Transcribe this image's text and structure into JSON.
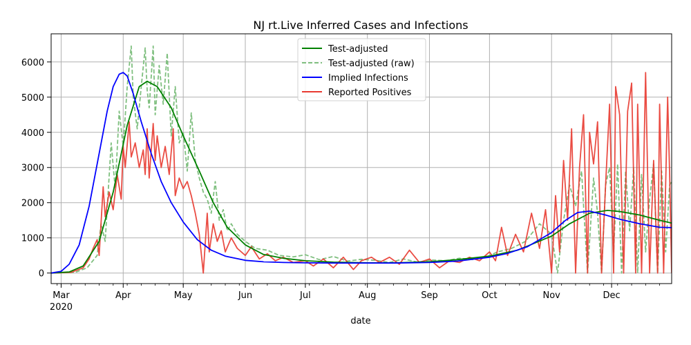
{
  "chart_data": {
    "type": "line",
    "title": "NJ rt.Live Inferred Cases and Infections",
    "xlabel": "date",
    "ylabel": "",
    "x_range": [
      "2020-02-25",
      "2020-12-31"
    ],
    "ylim": [
      -300,
      6800
    ],
    "grid": true,
    "legend_position": "top-center",
    "x_ticks": [
      {
        "date": "2020-03-01",
        "label": "Mar",
        "sublabel": "2020"
      },
      {
        "date": "2020-04-01",
        "label": "Apr"
      },
      {
        "date": "2020-05-01",
        "label": "May"
      },
      {
        "date": "2020-06-01",
        "label": "Jun"
      },
      {
        "date": "2020-07-01",
        "label": "Jul"
      },
      {
        "date": "2020-08-01",
        "label": "Aug"
      },
      {
        "date": "2020-09-01",
        "label": "Sep"
      },
      {
        "date": "2020-10-01",
        "label": "Oct"
      },
      {
        "date": "2020-11-01",
        "label": "Nov"
      },
      {
        "date": "2020-12-01",
        "label": "Dec"
      }
    ],
    "y_ticks": [
      0,
      1000,
      2000,
      3000,
      4000,
      5000,
      6000
    ],
    "series": [
      {
        "name": "Test-adjusted",
        "color": "#008000",
        "style": "solid",
        "x": [
          "2020-02-25",
          "2020-03-05",
          "2020-03-12",
          "2020-03-20",
          "2020-03-27",
          "2020-04-03",
          "2020-04-09",
          "2020-04-13",
          "2020-04-18",
          "2020-04-25",
          "2020-05-01",
          "2020-05-09",
          "2020-05-16",
          "2020-05-23",
          "2020-06-01",
          "2020-06-10",
          "2020-06-20",
          "2020-07-01",
          "2020-07-15",
          "2020-08-01",
          "2020-08-15",
          "2020-09-01",
          "2020-09-15",
          "2020-10-01",
          "2020-10-15",
          "2020-11-01",
          "2020-11-10",
          "2020-11-20",
          "2020-11-29",
          "2020-12-05",
          "2020-12-15",
          "2020-12-25",
          "2020-12-31"
        ],
        "y": [
          0,
          30,
          200,
          900,
          2300,
          4200,
          5300,
          5450,
          5300,
          4700,
          3900,
          2900,
          2000,
          1300,
          800,
          530,
          420,
          350,
          310,
          290,
          290,
          320,
          380,
          480,
          650,
          1050,
          1400,
          1700,
          1780,
          1750,
          1650,
          1500,
          1420
        ]
      },
      {
        "name": "Test-adjusted (raw)",
        "color": "#7fbf7f",
        "style": "dashed",
        "x": [
          "2020-02-25",
          "2020-03-08",
          "2020-03-14",
          "2020-03-19",
          "2020-03-21",
          "2020-03-23",
          "2020-03-26",
          "2020-03-28",
          "2020-03-30",
          "2020-04-01",
          "2020-04-03",
          "2020-04-05",
          "2020-04-06",
          "2020-04-08",
          "2020-04-10",
          "2020-04-12",
          "2020-04-13",
          "2020-04-14",
          "2020-04-16",
          "2020-04-17",
          "2020-04-19",
          "2020-04-21",
          "2020-04-23",
          "2020-04-25",
          "2020-04-27",
          "2020-04-29",
          "2020-05-01",
          "2020-05-03",
          "2020-05-05",
          "2020-05-07",
          "2020-05-09",
          "2020-05-11",
          "2020-05-13",
          "2020-05-15",
          "2020-05-17",
          "2020-05-19",
          "2020-05-21",
          "2020-05-23",
          "2020-05-25",
          "2020-05-28",
          "2020-06-01",
          "2020-06-06",
          "2020-06-12",
          "2020-06-18",
          "2020-06-25",
          "2020-07-01",
          "2020-07-08",
          "2020-07-15",
          "2020-07-22",
          "2020-07-29",
          "2020-08-05",
          "2020-08-12",
          "2020-08-19",
          "2020-08-26",
          "2020-09-02",
          "2020-09-09",
          "2020-09-16",
          "2020-09-23",
          "2020-09-30",
          "2020-10-05",
          "2020-10-12",
          "2020-10-19",
          "2020-10-26",
          "2020-11-01",
          "2020-11-04",
          "2020-11-07",
          "2020-11-10",
          "2020-11-13",
          "2020-11-16",
          "2020-11-19",
          "2020-11-22",
          "2020-11-24",
          "2020-11-26",
          "2020-11-28",
          "2020-11-30",
          "2020-12-02",
          "2020-12-04",
          "2020-12-06",
          "2020-12-08",
          "2020-12-10",
          "2020-12-12",
          "2020-12-14",
          "2020-12-16",
          "2020-12-18",
          "2020-12-20",
          "2020-12-22",
          "2020-12-24",
          "2020-12-26",
          "2020-12-28",
          "2020-12-30",
          "2020-12-31"
        ],
        "y": [
          0,
          20,
          150,
          500,
          1400,
          900,
          3700,
          2400,
          4600,
          3600,
          5300,
          6450,
          5000,
          4100,
          5300,
          6400,
          5200,
          4700,
          6450,
          4500,
          5900,
          4800,
          6250,
          3900,
          5300,
          3700,
          4000,
          2900,
          4550,
          3200,
          2700,
          2300,
          2100,
          1700,
          2600,
          1500,
          1800,
          1200,
          1400,
          1100,
          900,
          700,
          650,
          500,
          460,
          520,
          380,
          470,
          340,
          390,
          360,
          300,
          400,
          310,
          370,
          350,
          420,
          380,
          470,
          600,
          700,
          900,
          1400,
          1100,
          0,
          1500,
          2500,
          1900,
          2900,
          0,
          2700,
          1700,
          0,
          2500,
          3000,
          600,
          3100,
          0,
          2900,
          1200,
          3000,
          0,
          2800,
          600,
          2100,
          3100,
          0,
          2900,
          600,
          2500,
          2600
        ]
      },
      {
        "name": "Implied Infections",
        "color": "#0000ff",
        "style": "solid",
        "x": [
          "2020-02-25",
          "2020-03-01",
          "2020-03-05",
          "2020-03-10",
          "2020-03-15",
          "2020-03-20",
          "2020-03-24",
          "2020-03-27",
          "2020-03-30",
          "2020-04-01",
          "2020-04-03",
          "2020-04-06",
          "2020-04-10",
          "2020-04-15",
          "2020-04-20",
          "2020-04-25",
          "2020-05-01",
          "2020-05-08",
          "2020-05-15",
          "2020-05-22",
          "2020-06-01",
          "2020-06-10",
          "2020-06-20",
          "2020-07-01",
          "2020-07-15",
          "2020-08-01",
          "2020-08-15",
          "2020-09-01",
          "2020-09-15",
          "2020-10-01",
          "2020-10-10",
          "2020-10-20",
          "2020-11-01",
          "2020-11-08",
          "2020-11-14",
          "2020-11-20",
          "2020-11-28",
          "2020-12-05",
          "2020-12-15",
          "2020-12-25",
          "2020-12-31"
        ],
        "y": [
          0,
          50,
          250,
          800,
          1900,
          3400,
          4600,
          5300,
          5650,
          5700,
          5600,
          5100,
          4300,
          3400,
          2600,
          2000,
          1450,
          950,
          650,
          480,
          360,
          320,
          300,
          290,
          285,
          285,
          285,
          300,
          340,
          450,
          560,
          750,
          1150,
          1500,
          1720,
          1760,
          1650,
          1530,
          1400,
          1300,
          1290
        ]
      },
      {
        "name": "Reported Positives",
        "color": "#e8382f",
        "style": "solid",
        "x": [
          "2020-02-25",
          "2020-03-06",
          "2020-03-12",
          "2020-03-15",
          "2020-03-17",
          "2020-03-19",
          "2020-03-20",
          "2020-03-22",
          "2020-03-23",
          "2020-03-25",
          "2020-03-27",
          "2020-03-29",
          "2020-03-31",
          "2020-04-01",
          "2020-04-02",
          "2020-04-04",
          "2020-04-05",
          "2020-04-07",
          "2020-04-09",
          "2020-04-11",
          "2020-04-12",
          "2020-04-13",
          "2020-04-14",
          "2020-04-16",
          "2020-04-17",
          "2020-04-18",
          "2020-04-20",
          "2020-04-22",
          "2020-04-24",
          "2020-04-26",
          "2020-04-27",
          "2020-04-29",
          "2020-05-01",
          "2020-05-03",
          "2020-05-05",
          "2020-05-07",
          "2020-05-09",
          "2020-05-11",
          "2020-05-13",
          "2020-05-14",
          "2020-05-16",
          "2020-05-18",
          "2020-05-20",
          "2020-05-22",
          "2020-05-25",
          "2020-05-28",
          "2020-06-01",
          "2020-06-04",
          "2020-06-08",
          "2020-06-12",
          "2020-06-16",
          "2020-06-20",
          "2020-06-25",
          "2020-07-01",
          "2020-07-05",
          "2020-07-10",
          "2020-07-15",
          "2020-07-20",
          "2020-07-25",
          "2020-07-29",
          "2020-08-03",
          "2020-08-07",
          "2020-08-12",
          "2020-08-17",
          "2020-08-22",
          "2020-08-27",
          "2020-09-01",
          "2020-09-06",
          "2020-09-11",
          "2020-09-16",
          "2020-09-21",
          "2020-09-26",
          "2020-10-01",
          "2020-10-04",
          "2020-10-07",
          "2020-10-10",
          "2020-10-14",
          "2020-10-18",
          "2020-10-22",
          "2020-10-26",
          "2020-10-29",
          "2020-11-01",
          "2020-11-03",
          "2020-11-05",
          "2020-11-07",
          "2020-11-09",
          "2020-11-11",
          "2020-11-13",
          "2020-11-15",
          "2020-11-17",
          "2020-11-19",
          "2020-11-20",
          "2020-11-22",
          "2020-11-24",
          "2020-11-26",
          "2020-11-28",
          "2020-11-30",
          "2020-12-02",
          "2020-12-03",
          "2020-12-05",
          "2020-12-07",
          "2020-12-09",
          "2020-12-11",
          "2020-12-13",
          "2020-12-14",
          "2020-12-16",
          "2020-12-18",
          "2020-12-20",
          "2020-12-22",
          "2020-12-24",
          "2020-12-25",
          "2020-12-27",
          "2020-12-29",
          "2020-12-30",
          "2020-12-31"
        ],
        "y": [
          0,
          20,
          150,
          400,
          700,
          950,
          500,
          2450,
          1600,
          2300,
          1800,
          2800,
          2100,
          3600,
          3000,
          4300,
          3300,
          3700,
          3000,
          3500,
          2800,
          4100,
          2700,
          4250,
          3200,
          3900,
          3000,
          3600,
          2800,
          4100,
          2200,
          2700,
          2400,
          2600,
          2200,
          1700,
          1100,
          0,
          1700,
          600,
          1400,
          900,
          1200,
          600,
          1000,
          700,
          500,
          750,
          400,
          550,
          350,
          450,
          300,
          350,
          200,
          400,
          150,
          450,
          100,
          350,
          450,
          300,
          450,
          250,
          650,
          300,
          400,
          150,
          350,
          300,
          450,
          350,
          600,
          350,
          1300,
          500,
          1100,
          600,
          1700,
          700,
          1800,
          0,
          2200,
          600,
          3200,
          1500,
          4100,
          0,
          3000,
          4500,
          0,
          4000,
          3100,
          4300,
          0,
          2500,
          4800,
          0,
          5300,
          4500,
          0,
          4600,
          5400,
          0,
          4800,
          0,
          5700,
          0,
          3200,
          0,
          4800,
          0,
          5000,
          2800,
          0
        ]
      }
    ]
  }
}
